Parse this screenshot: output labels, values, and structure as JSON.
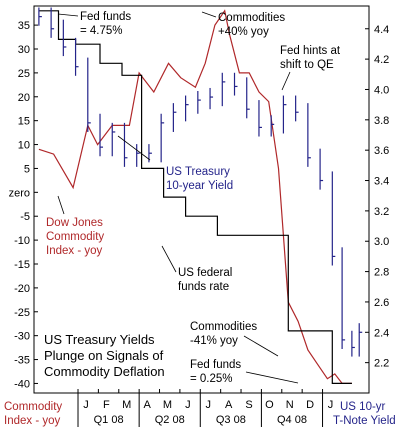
{
  "chart_data": {
    "type": "line",
    "title": "US Treasury Yields Plunge on Signals of Commodity Deflation",
    "title_lines": [
      "US Treasury Yields",
      "Plunge on Signals of",
      "Commodity Deflation"
    ],
    "x_axis": {
      "months": [
        "J",
        "F",
        "M",
        "A",
        "M",
        "J",
        "J",
        "A",
        "S",
        "O",
        "N",
        "D",
        "J"
      ],
      "quarters": [
        "Q1 08",
        "Q2 08",
        "Q3 08",
        "Q4 08"
      ],
      "left_caption": [
        "Commodity",
        "Index - yoy"
      ],
      "right_caption": [
        "US 10-yr",
        "T-Note Yield"
      ]
    },
    "y_left": {
      "label": "Commodity Index - yoy (%)",
      "ylim": [
        -42,
        39
      ],
      "ticks": [
        "35",
        "30",
        "25",
        "20",
        "15",
        "10",
        "5",
        "zero",
        "-5",
        "-10",
        "-15",
        "-20",
        "-25",
        "-30",
        "-35",
        "-40"
      ],
      "tick_values": [
        35,
        30,
        25,
        20,
        15,
        10,
        5,
        0,
        -5,
        -10,
        -15,
        -20,
        -25,
        -30,
        -35,
        -40
      ]
    },
    "y_right": {
      "label": "US 10-yr T-Note Yield (%)",
      "ylim": [
        2.0,
        4.55
      ],
      "ticks": [
        "4.4",
        "4.2",
        "4.0",
        "3.8",
        "3.6",
        "3.4",
        "3.2",
        "3.0",
        "2.8",
        "2.6",
        "2.4",
        "2.2"
      ],
      "tick_values": [
        4.4,
        4.2,
        4.0,
        3.8,
        3.6,
        3.4,
        3.2,
        3.0,
        2.8,
        2.6,
        2.4,
        2.2
      ]
    },
    "colors": {
      "commodity": "#b0282a",
      "treasury": "#24248a",
      "fedfunds": "#000000",
      "annotation_black": "#000000",
      "annotation_red": "#b0282a",
      "annotation_blue": "#24248a",
      "axis_caption": "#b0282a",
      "right_caption": "#24248a"
    },
    "series": [
      {
        "name": "Dow Jones Commodity Index - yoy",
        "axis": "left",
        "unit": "%",
        "x": [
          2007.8,
          2007.86,
          2007.94,
          2008.0,
          2008.04,
          2008.1,
          2008.17,
          2008.21,
          2008.27,
          2008.33,
          2008.38,
          2008.44,
          2008.48,
          2008.52,
          2008.56,
          2008.58,
          2008.62,
          2008.66,
          2008.7,
          2008.74,
          2008.78,
          2008.82,
          2008.86,
          2008.9,
          2008.94,
          2008.98,
          2009.01,
          2009.04,
          2009.08
        ],
        "y": [
          9,
          8,
          1,
          14,
          10,
          14,
          14,
          25,
          21,
          27,
          24,
          22,
          27,
          35,
          38,
          33,
          25,
          25,
          21,
          19,
          5,
          -23,
          -27,
          -33,
          -36,
          -39,
          -38,
          -40,
          -40
        ]
      },
      {
        "name": "US Treasury 10-year Yield",
        "axis": "right",
        "unit": "%",
        "x": [
          2007.8,
          2007.85,
          2007.9,
          2007.95,
          2008.0,
          2008.05,
          2008.1,
          2008.15,
          2008.2,
          2008.25,
          2008.3,
          2008.35,
          2008.4,
          2008.45,
          2008.5,
          2008.55,
          2008.6,
          2008.65,
          2008.7,
          2008.75,
          2008.8,
          2008.85,
          2008.9,
          2008.95,
          2009.0,
          2009.04,
          2009.08,
          2009.11
        ],
        "y": [
          4.48,
          4.4,
          4.28,
          4.15,
          3.78,
          3.62,
          3.72,
          3.55,
          3.58,
          3.58,
          3.78,
          3.85,
          3.9,
          3.93,
          3.95,
          4.05,
          4.02,
          3.87,
          3.75,
          3.77,
          3.9,
          3.85,
          3.55,
          3.4,
          2.9,
          2.35,
          2.3,
          2.4
        ]
      },
      {
        "name": "US federal funds rate",
        "axis": "left",
        "unit": "axis-scaled",
        "x": [
          2007.8,
          2007.88,
          2007.95,
          2008.05,
          2008.14,
          2008.22,
          2008.31,
          2008.4,
          2008.53,
          2008.75,
          2008.82,
          2008.9,
          2009.0,
          2009.08
        ],
        "y": [
          38,
          32,
          31,
          27,
          24.5,
          5,
          -1,
          -5,
          -9,
          -9,
          -29,
          -29,
          -40,
          -40
        ]
      }
    ],
    "annotations": [
      {
        "lines": [
          "Fed funds",
          "= 4.75%"
        ],
        "color": "black"
      },
      {
        "lines": [
          "Commodities",
          "+40% yoy"
        ],
        "color": "black"
      },
      {
        "lines": [
          "Fed hints at",
          "shift to QE"
        ],
        "color": "black"
      },
      {
        "lines": [
          "US Treasury",
          "10-year Yield"
        ],
        "color": "blue"
      },
      {
        "lines": [
          "Dow Jones",
          "Commodity",
          "Index - yoy"
        ],
        "color": "red"
      },
      {
        "lines": [
          "US federal",
          "funds rate"
        ],
        "color": "black"
      },
      {
        "lines": [
          "Commodities",
          "-41% yoy"
        ],
        "color": "black"
      },
      {
        "lines": [
          "Fed funds",
          "= 0.25%"
        ],
        "color": "black"
      }
    ]
  }
}
